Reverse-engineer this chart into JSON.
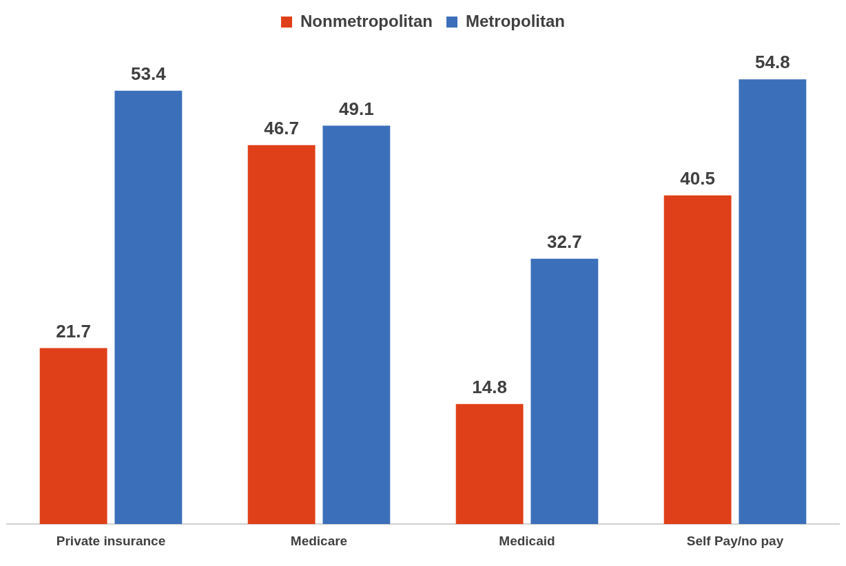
{
  "chart_data": {
    "type": "bar",
    "categories": [
      "Private insurance",
      "Medicare",
      "Medicaid",
      "Self Pay/no pay"
    ],
    "series": [
      {
        "name": "Nonmetropolitan",
        "color": "#e04019",
        "values": [
          21.7,
          46.7,
          14.8,
          40.5
        ]
      },
      {
        "name": "Metropolitan",
        "color": "#3b6fba",
        "values": [
          53.4,
          49.1,
          32.7,
          54.8
        ]
      }
    ],
    "data_labels": true,
    "legend": "top",
    "grid": false
  }
}
